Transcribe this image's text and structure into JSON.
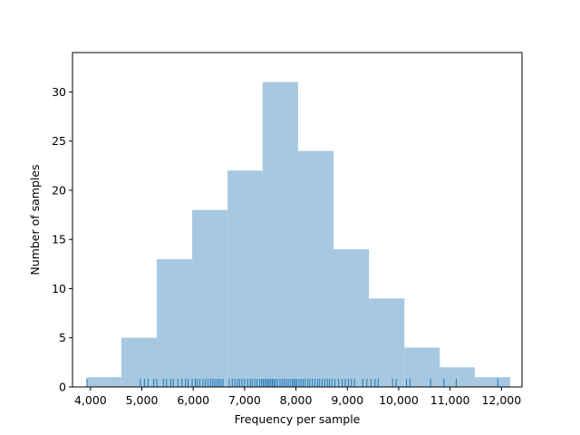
{
  "chart_data": {
    "type": "bar",
    "subtype": "histogram-with-rug",
    "xlabel": "Frequency per sample",
    "ylabel": "Number of samples",
    "xlim": [
      3650,
      12400
    ],
    "ylim": [
      0,
      34
    ],
    "x_ticks": [
      4000,
      5000,
      6000,
      7000,
      8000,
      9000,
      10000,
      11000,
      12000
    ],
    "x_tick_labels": [
      "4,000",
      "5,000",
      "6,000",
      "7,000",
      "8,000",
      "9,000",
      "10,000",
      "11,000",
      "12,000"
    ],
    "y_ticks": [
      0,
      5,
      10,
      15,
      20,
      25,
      30
    ],
    "y_tick_labels": [
      "0",
      "5",
      "10",
      "15",
      "20",
      "25",
      "30"
    ],
    "bins": [
      {
        "start": 3930,
        "end": 4600,
        "count": 1
      },
      {
        "start": 4600,
        "end": 5290,
        "count": 5
      },
      {
        "start": 5290,
        "end": 5980,
        "count": 13
      },
      {
        "start": 5980,
        "end": 6670,
        "count": 18
      },
      {
        "start": 6670,
        "end": 7350,
        "count": 22
      },
      {
        "start": 7350,
        "end": 8040,
        "count": 31
      },
      {
        "start": 8040,
        "end": 8730,
        "count": 24
      },
      {
        "start": 8730,
        "end": 9420,
        "count": 14
      },
      {
        "start": 9420,
        "end": 10110,
        "count": 9
      },
      {
        "start": 10110,
        "end": 10800,
        "count": 4
      },
      {
        "start": 10800,
        "end": 11480,
        "count": 2
      },
      {
        "start": 11480,
        "end": 12170,
        "count": 1
      }
    ],
    "rug": [
      3930,
      4970,
      5050,
      5120,
      5230,
      5290,
      5420,
      5480,
      5560,
      5610,
      5700,
      5780,
      5850,
      5900,
      5980,
      6040,
      6080,
      6130,
      6190,
      6240,
      6290,
      6340,
      6380,
      6420,
      6460,
      6500,
      6540,
      6580,
      6700,
      6760,
      6810,
      6860,
      6900,
      6950,
      7000,
      7060,
      7110,
      7150,
      7200,
      7240,
      7290,
      7330,
      7360,
      7390,
      7420,
      7450,
      7480,
      7510,
      7540,
      7570,
      7600,
      7640,
      7690,
      7730,
      7770,
      7810,
      7850,
      7890,
      7930,
      7960,
      7990,
      8020,
      8060,
      8100,
      8140,
      8180,
      8230,
      8270,
      8320,
      8370,
      8420,
      8460,
      8510,
      8560,
      8610,
      8650,
      8700,
      8760,
      8830,
      8900,
      8960,
      9020,
      9080,
      9140,
      9300,
      9380,
      9460,
      9540,
      9600,
      9880,
      9950,
      10150,
      10220,
      10620,
      10880,
      11120,
      11930
    ],
    "bar_color": "#a6c8e0",
    "rug_color": "#1f77b4",
    "grid": false,
    "legend": "none"
  }
}
